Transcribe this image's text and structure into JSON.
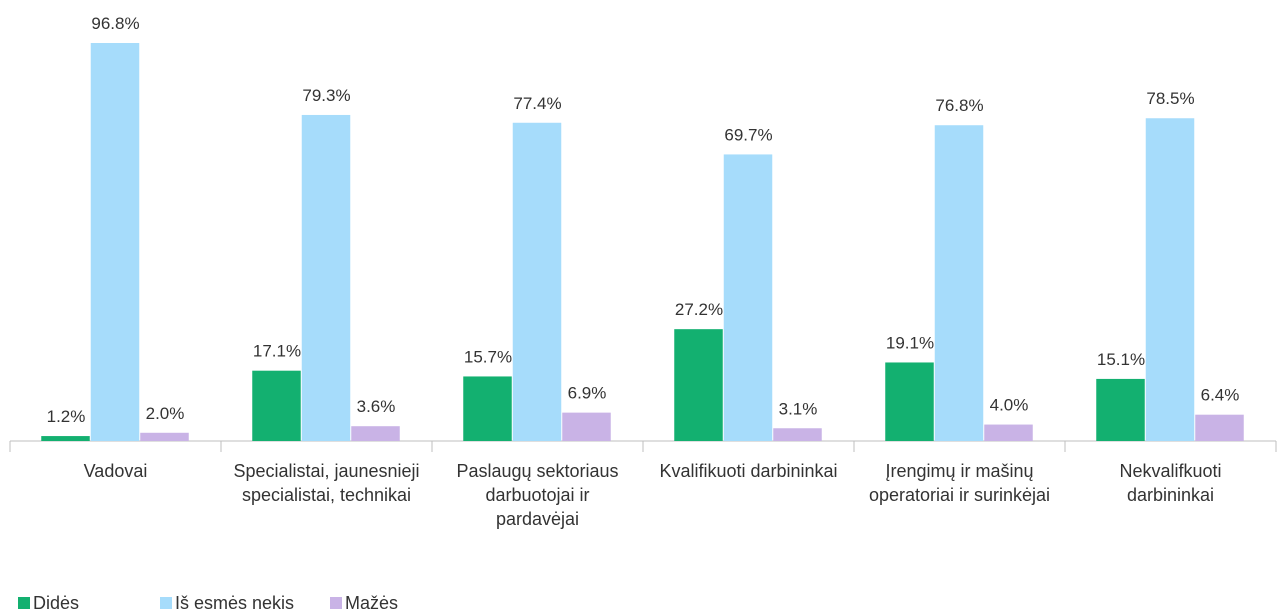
{
  "chart_data": {
    "type": "bar",
    "categories": [
      "Vadovai",
      "Specialistai, jaunesnieji specialistai, technikai",
      "Paslaugų sektoriaus darbuotojai ir pardavėjai",
      "Kvalifikuoti darbininkai",
      "Įrengimų ir mašinų operatoriai ir surinkėjai",
      "Nekvalifkuoti darbininkai"
    ],
    "series": [
      {
        "name": "Didės",
        "color": "#13b070",
        "values": [
          1.2,
          17.1,
          15.7,
          27.2,
          19.1,
          15.1
        ],
        "value_labels": [
          "1.2%",
          "17.1%",
          "15.7%",
          "27.2%",
          "19.1%",
          "15.1%"
        ]
      },
      {
        "name": "Iš esmės nekis",
        "color": "#a6dcfb",
        "values": [
          96.8,
          79.3,
          77.4,
          69.7,
          76.8,
          78.5
        ],
        "value_labels": [
          "96.8%",
          "79.3%",
          "77.4%",
          "69.7%",
          "76.8%",
          "78.5%"
        ]
      },
      {
        "name": "Mažės",
        "color": "#c9b3e6",
        "values": [
          2.0,
          3.6,
          6.9,
          3.1,
          4.0,
          6.4
        ],
        "value_labels": [
          "2.0%",
          "3.6%",
          "6.9%",
          "3.1%",
          "4.0%",
          "6.4%"
        ]
      }
    ],
    "legend": "bottom-left"
  }
}
